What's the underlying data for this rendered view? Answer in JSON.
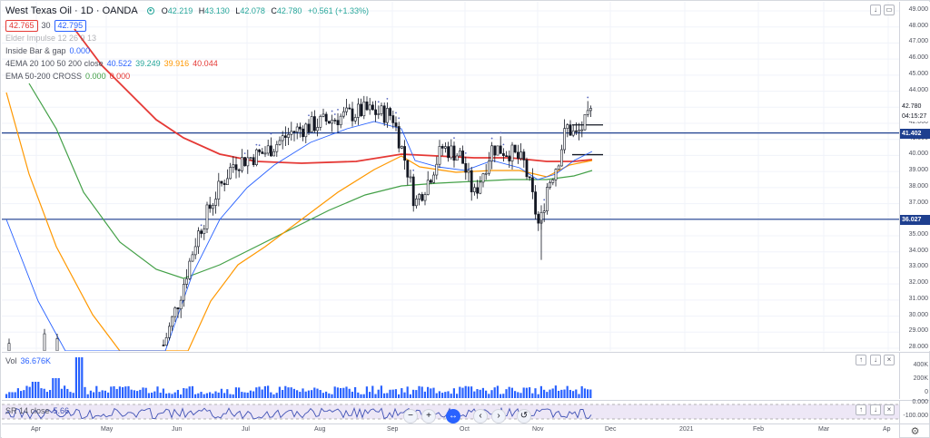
{
  "header": {
    "title": "West Texas Oil · 1D · OANDA",
    "ohlc": {
      "o_label": "O",
      "o": "42.219",
      "h_label": "H",
      "h": "43.130",
      "l_label": "L",
      "l": "42.078",
      "c_label": "C",
      "c": "42.780",
      "change": "+0.561 (+1.33%)"
    },
    "bid": "42.765",
    "spread": "30",
    "ask": "42.795"
  },
  "indicators": [
    {
      "name": "Elder Impulse 12 26 9 13",
      "values": []
    },
    {
      "name": "Inside Bar & gap",
      "values": [
        {
          "v": "0.000",
          "color": "#2962ff"
        }
      ]
    },
    {
      "name": "4EMA 20 100 50 200 close",
      "values": [
        {
          "v": "40.522",
          "color": "#2962ff"
        },
        {
          "v": "39.249",
          "color": "#26a69a"
        },
        {
          "v": "39.916",
          "color": "#ff9800"
        },
        {
          "v": "40.044",
          "color": "#e53935"
        }
      ]
    },
    {
      "name": "EMA 50-200 CROSS",
      "values": [
        {
          "v": "0.000",
          "color": "#43a047"
        },
        {
          "v": "0.000",
          "color": "#e53935"
        }
      ]
    }
  ],
  "volume": {
    "label": "Vol",
    "value": "36.676K"
  },
  "rsi": {
    "label": "SR 14 close",
    "value": "5.66"
  },
  "price_axis": {
    "unit": "USD",
    "ticks": [
      "49.000",
      "48.000",
      "47.000",
      "46.000",
      "45.000",
      "44.000",
      "43.000",
      "42.000",
      "41.000",
      "40.000",
      "39.000",
      "38.000",
      "37.000",
      "36.000",
      "35.000",
      "34.000",
      "33.000",
      "32.000",
      "31.000",
      "30.000",
      "29.000",
      "28.000"
    ],
    "current_price": "42.780",
    "countdown": "04:15:27",
    "level_upper": "41.402",
    "level_lower": "36.027"
  },
  "volume_axis": [
    "400K",
    "200K",
    "0"
  ],
  "rsi_axis": [
    "0.000",
    "-100.000"
  ],
  "time_axis": [
    "Apr",
    "May",
    "Jun",
    "Jul",
    "Aug",
    "Sep",
    "Oct",
    "Nov",
    "Dec",
    "2021",
    "Feb",
    "Mar",
    "Ap"
  ],
  "icons": {
    "scroll_down": "chevron-down-icon",
    "maximize": "maximize-icon",
    "close": "close-icon",
    "settings": "gear-icon"
  },
  "colors": {
    "up": "#26a69a",
    "down": "#131722",
    "ema20": "#2962ff",
    "ema50": "#ff9800",
    "ema100": "#43a047",
    "ema200": "#e53935",
    "hline": "#1e3f8f",
    "volume": "#2962ff",
    "rsi": "#3f51b5"
  },
  "nav_controls": [
    "−",
    "+",
    "↔",
    "‹",
    "›",
    "↺"
  ]
}
